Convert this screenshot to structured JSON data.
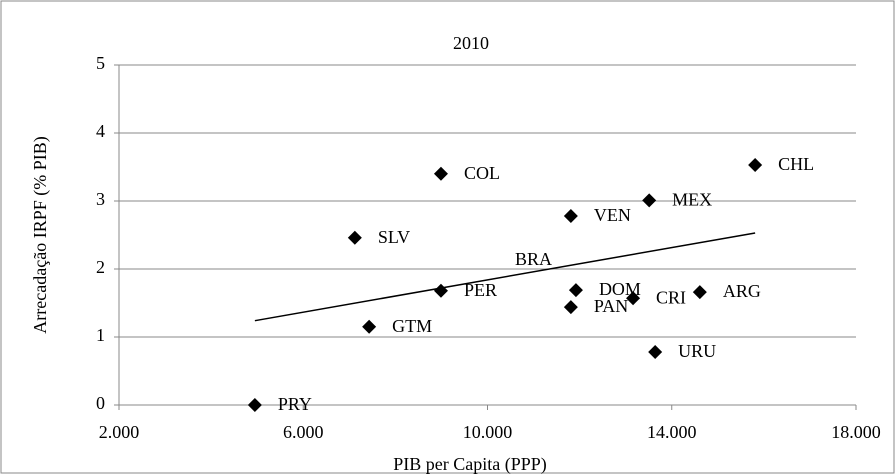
{
  "chart_data": {
    "type": "scatter",
    "title": "2010",
    "x_label": "PIB per Capita (PPP)",
    "y_label": "Arrecadação IRPF (% PIB)",
    "series": [
      {
        "name": "IRPF",
        "color": "#000000",
        "point_labels": [
          "PRY",
          "GTM",
          "SLV",
          "COL",
          "PER",
          "VEN",
          "PAN",
          "DOM",
          "CRI",
          "MEX",
          "URU",
          "ARG",
          "CHL"
        ],
        "x": [
          4950,
          7430,
          7120,
          8990,
          8990,
          11810,
          11810,
          11920,
          13160,
          13510,
          13640,
          14610,
          15810
        ],
        "values": [
          0,
          1.15,
          2.46,
          3.4,
          1.68,
          2.78,
          1.44,
          1.69,
          1.57,
          3.01,
          0.78,
          1.66,
          3.53
        ]
      }
    ],
    "annotations": [
      {
        "text": "BRA",
        "x": 11000,
        "y": 2.12
      }
    ],
    "trendline": {
      "x": [
        4950,
        15810
      ],
      "values": [
        1.24,
        2.53
      ]
    },
    "xlim": [
      2000,
      18000
    ],
    "xticks": [
      {
        "value": 2000,
        "label": "2.000"
      },
      {
        "value": 6000,
        "label": "6.000"
      },
      {
        "value": 10000,
        "label": "10.000"
      },
      {
        "value": 14000,
        "label": "14.000"
      },
      {
        "value": 18000,
        "label": "18.000"
      }
    ],
    "ylim": [
      0,
      5
    ],
    "yticks": [
      0,
      1,
      2,
      3,
      4,
      5
    ],
    "grid": true
  }
}
